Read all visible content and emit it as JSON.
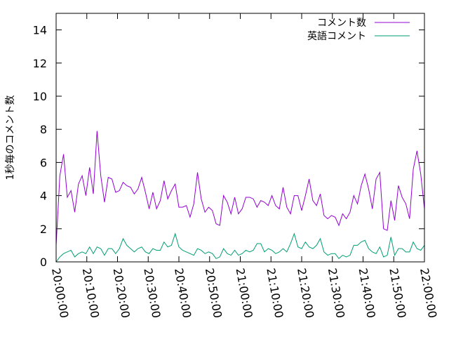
{
  "chart_data": {
    "type": "line",
    "ylabel": "1秒毎のコメント数",
    "ylim": [
      0,
      15
    ],
    "yticks": [
      "0",
      "2",
      "4",
      "6",
      "8",
      "10",
      "12",
      "14"
    ],
    "xlim": [
      "20:00:00",
      "22:00:00"
    ],
    "xticks": [
      "20:00:00",
      "20:10:00",
      "20:20:00",
      "20:30:00",
      "20:40:00",
      "20:50:00",
      "21:00:00",
      "21:10:00",
      "21:20:00",
      "21:30:00",
      "21:40:00",
      "21:50:00",
      "22:00:00"
    ],
    "legend_position": "top-right",
    "x_step": "00:01:00",
    "series": [
      {
        "name": "コメント数",
        "color": "#9400d3",
        "values": [
          1.0,
          5.2,
          6.5,
          3.9,
          4.3,
          3.0,
          4.7,
          5.2,
          4.0,
          5.7,
          4.1,
          7.9,
          5.2,
          3.6,
          5.1,
          5.0,
          4.2,
          4.3,
          4.8,
          4.6,
          4.5,
          4.1,
          4.4,
          5.1,
          4.2,
          3.2,
          4.2,
          3.2,
          3.7,
          4.9,
          3.8,
          4.3,
          4.7,
          3.3,
          3.3,
          3.4,
          2.7,
          3.5,
          5.4,
          3.8,
          3.0,
          3.3,
          3.1,
          2.3,
          2.2,
          4.0,
          3.6,
          2.9,
          3.9,
          2.9,
          3.2,
          3.9,
          3.9,
          3.8,
          3.3,
          3.7,
          3.6,
          3.4,
          4.0,
          3.4,
          3.2,
          4.5,
          3.3,
          2.9,
          4.0,
          4.0,
          3.1,
          4.0,
          5.0,
          3.7,
          3.4,
          4.1,
          2.8,
          2.6,
          2.8,
          2.7,
          2.2,
          2.9,
          2.6,
          3.0,
          4.0,
          3.5,
          4.6,
          5.3,
          4.4,
          3.2,
          5.0,
          5.4,
          2.0,
          1.9,
          3.7,
          2.5,
          4.6,
          3.9,
          3.5,
          2.6,
          5.6,
          6.7,
          5.3,
          3.2
        ]
      },
      {
        "name": "英語コメント",
        "color": "#009e73",
        "values": [
          0.0,
          0.3,
          0.5,
          0.6,
          0.7,
          0.3,
          0.5,
          0.6,
          0.5,
          0.9,
          0.5,
          0.9,
          0.8,
          0.4,
          0.8,
          0.8,
          0.5,
          0.8,
          1.4,
          1.0,
          0.8,
          0.6,
          0.8,
          0.9,
          0.6,
          0.5,
          0.8,
          0.7,
          0.7,
          1.2,
          0.9,
          1.0,
          1.7,
          0.9,
          0.7,
          0.6,
          0.5,
          0.4,
          0.8,
          0.7,
          0.5,
          0.6,
          0.5,
          0.2,
          0.3,
          0.8,
          0.5,
          0.4,
          0.7,
          0.4,
          0.5,
          0.7,
          0.6,
          0.7,
          1.1,
          1.1,
          0.6,
          0.8,
          0.7,
          0.5,
          0.6,
          0.8,
          0.6,
          1.1,
          1.7,
          0.9,
          0.8,
          1.2,
          0.9,
          0.8,
          1.0,
          1.4,
          0.6,
          0.4,
          0.5,
          0.5,
          0.2,
          0.4,
          0.3,
          0.4,
          1.0,
          1.0,
          1.2,
          1.3,
          0.8,
          0.6,
          0.5,
          0.9,
          0.3,
          0.4,
          1.5,
          0.4,
          0.8,
          0.8,
          0.6,
          0.6,
          1.2,
          0.8,
          0.7,
          1.0
        ]
      }
    ]
  }
}
